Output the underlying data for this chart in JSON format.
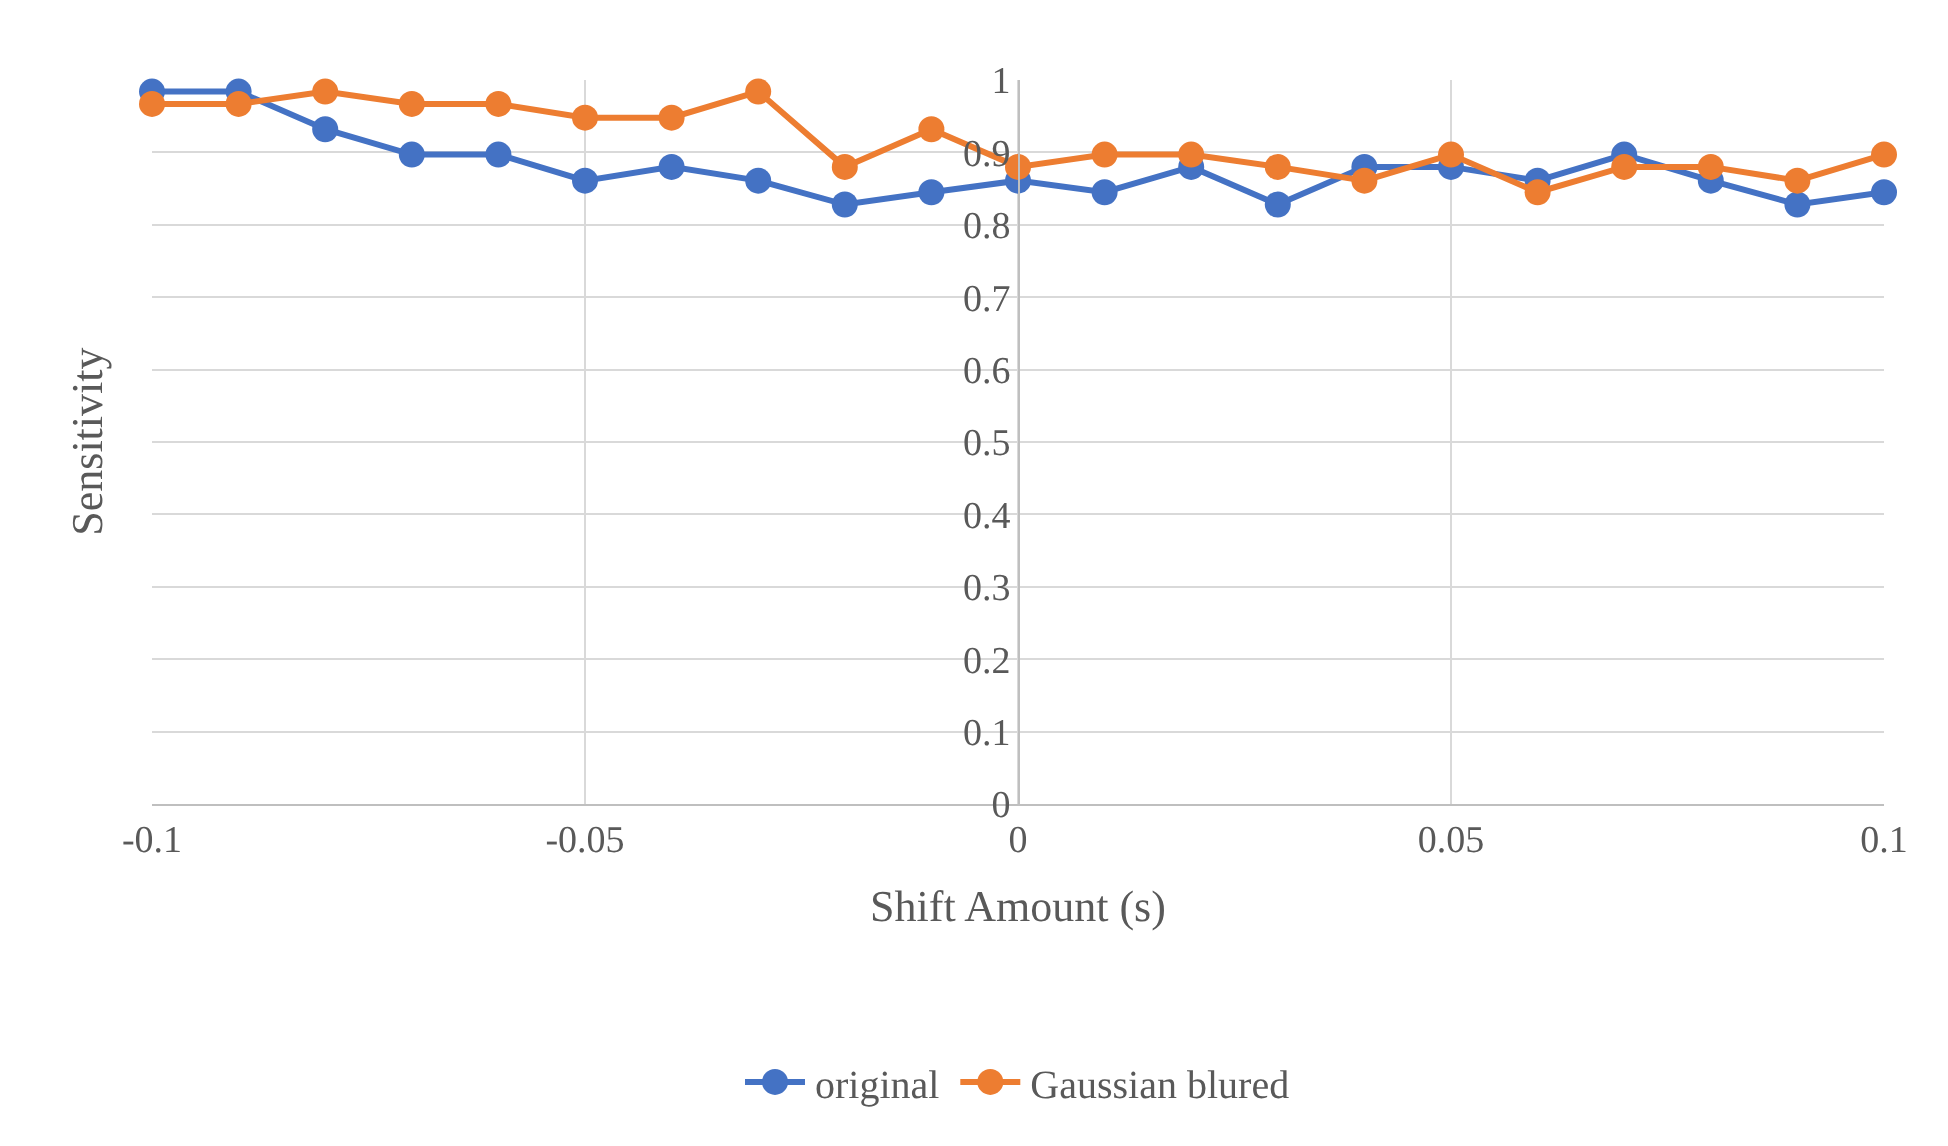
{
  "chart_data": {
    "type": "line",
    "xlabel": "Shift Amount (s)",
    "ylabel": "Sensitivity",
    "x": [
      -0.1,
      -0.09,
      -0.08,
      -0.07,
      -0.06,
      -0.05,
      -0.04,
      -0.03,
      -0.02,
      -0.01,
      0,
      0.01,
      0.02,
      0.03,
      0.04,
      0.05,
      0.06,
      0.07,
      0.08,
      0.09,
      0.1
    ],
    "series": [
      {
        "name": "original",
        "color": "#4472c4",
        "values": [
          0.984,
          0.984,
          0.932,
          0.897,
          0.897,
          0.861,
          0.88,
          0.861,
          0.828,
          0.845,
          0.861,
          0.845,
          0.88,
          0.828,
          0.88,
          0.88,
          0.861,
          0.897,
          0.861,
          0.828,
          0.845
        ]
      },
      {
        "name": "Gaussian blured",
        "color": "#ed7d31",
        "values": [
          0.967,
          0.967,
          0.984,
          0.967,
          0.967,
          0.948,
          0.948,
          0.984,
          0.88,
          0.932,
          0.88,
          0.897,
          0.897,
          0.88,
          0.861,
          0.897,
          0.845,
          0.88,
          0.88,
          0.861,
          0.897
        ]
      }
    ],
    "xlim": [
      -0.1,
      0.1
    ],
    "xticks": [
      -0.1,
      -0.05,
      0,
      0.05,
      0.1
    ],
    "ylim": [
      0,
      1
    ],
    "yticks": [
      0,
      0.1,
      0.2,
      0.3,
      0.4,
      0.5,
      0.6,
      0.7,
      0.8,
      0.9,
      1
    ],
    "grid": true,
    "legend": "bottom",
    "marker": "circle",
    "line_style": "solid"
  }
}
